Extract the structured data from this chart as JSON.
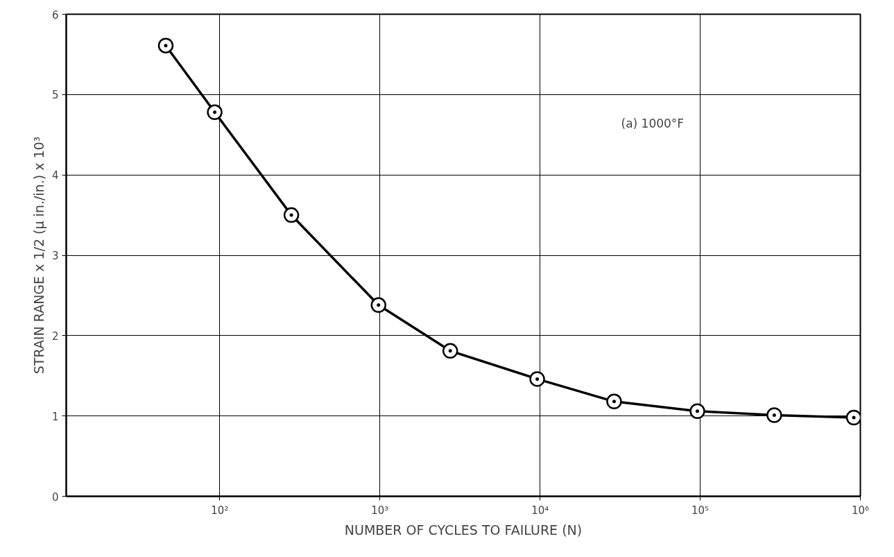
{
  "chart_data": {
    "type": "line",
    "xlabel": "NUMBER OF CYCLES TO FAILURE (N)",
    "ylabel": "STRAIN RANGE x 1/2 (μ in./in.) x 10³",
    "annotations": [
      "(a) 1000°F"
    ],
    "x": [
      46,
      93,
      280,
      980,
      2750,
      9600,
      29000,
      96000,
      290000,
      910000
    ],
    "series": [
      {
        "color": "#000000",
        "values": [
          5.61,
          4.78,
          3.5,
          2.38,
          1.81,
          1.46,
          1.18,
          1.06,
          1.01,
          0.98
        ]
      }
    ],
    "log": "x",
    "xlim": [
      11,
      1000000
    ],
    "ylim": [
      0,
      6
    ],
    "xticks": [
      {
        "value": 100,
        "label": "10²"
      },
      {
        "value": 1000,
        "label": "10³"
      },
      {
        "value": 10000,
        "label": "10⁴"
      },
      {
        "value": 100000,
        "label": "10⁵"
      },
      {
        "value": 1000000,
        "label": "10⁶"
      }
    ],
    "yticks": [
      0,
      1,
      2,
      3,
      4,
      5,
      6
    ],
    "grid": true,
    "marker": "circle",
    "line_style": "solid"
  }
}
